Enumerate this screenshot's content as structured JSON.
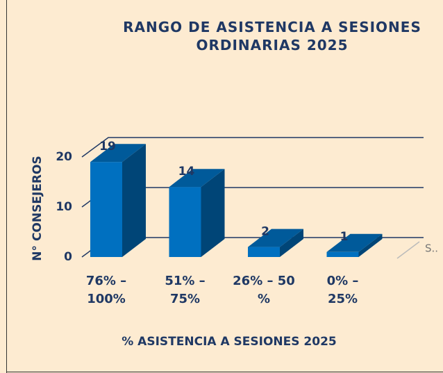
{
  "chart_data": {
    "type": "bar3d",
    "title": "RANGO DE ASISTENCIA A SESIONES ORDINARIAS 2025",
    "x_label": "% ASISTENCIA A SESIONES 2025",
    "y_label": "N° CONSEJEROS",
    "categories": [
      "76% – 100%",
      "51% – 75%",
      "26% – 50 %",
      "0% – 25%"
    ],
    "series": [
      {
        "name": "S..",
        "color": "#0070c0",
        "values": [
          19,
          14,
          2,
          1
        ]
      }
    ],
    "ylim": [
      0,
      20
    ],
    "yticks": [
      0,
      10,
      20
    ],
    "grid": true,
    "legend": "right"
  }
}
